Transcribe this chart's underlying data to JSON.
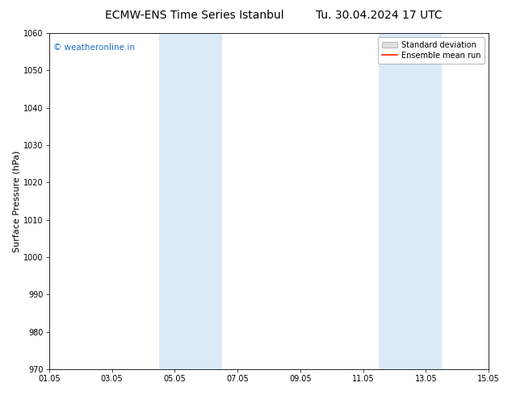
{
  "title_left": "ECMW-ENS Time Series Istanbul",
  "title_right": "Tu. 30.04.2024 17 UTC",
  "ylabel": "Surface Pressure (hPa)",
  "ylim": [
    970,
    1060
  ],
  "yticks": [
    970,
    980,
    990,
    1000,
    1010,
    1020,
    1030,
    1040,
    1050,
    1060
  ],
  "xtick_labels": [
    "01.05",
    "03.05",
    "05.05",
    "07.05",
    "09.05",
    "11.05",
    "13.05",
    "15.05"
  ],
  "xtick_positions": [
    0,
    2,
    4,
    6,
    8,
    10,
    12,
    14
  ],
  "xlim": [
    0,
    14
  ],
  "shaded_regions": [
    {
      "start": 3.5,
      "end": 5.5
    },
    {
      "start": 10.5,
      "end": 12.5
    }
  ],
  "shade_color": "#daeaf7",
  "watermark_text": "© weatheronline.in",
  "watermark_color": "#1a6ecc",
  "watermark_fontsize": 7.5,
  "legend_std_label": "Standard deviation",
  "legend_ens_label": "Ensemble mean run",
  "legend_std_facecolor": "#e0e0e0",
  "legend_std_edgecolor": "#aaaaaa",
  "legend_ens_color": "#ff2200",
  "bg_color": "#ffffff",
  "title_fontsize": 10,
  "tick_fontsize": 7,
  "ylabel_fontsize": 8,
  "legend_fontsize": 7
}
